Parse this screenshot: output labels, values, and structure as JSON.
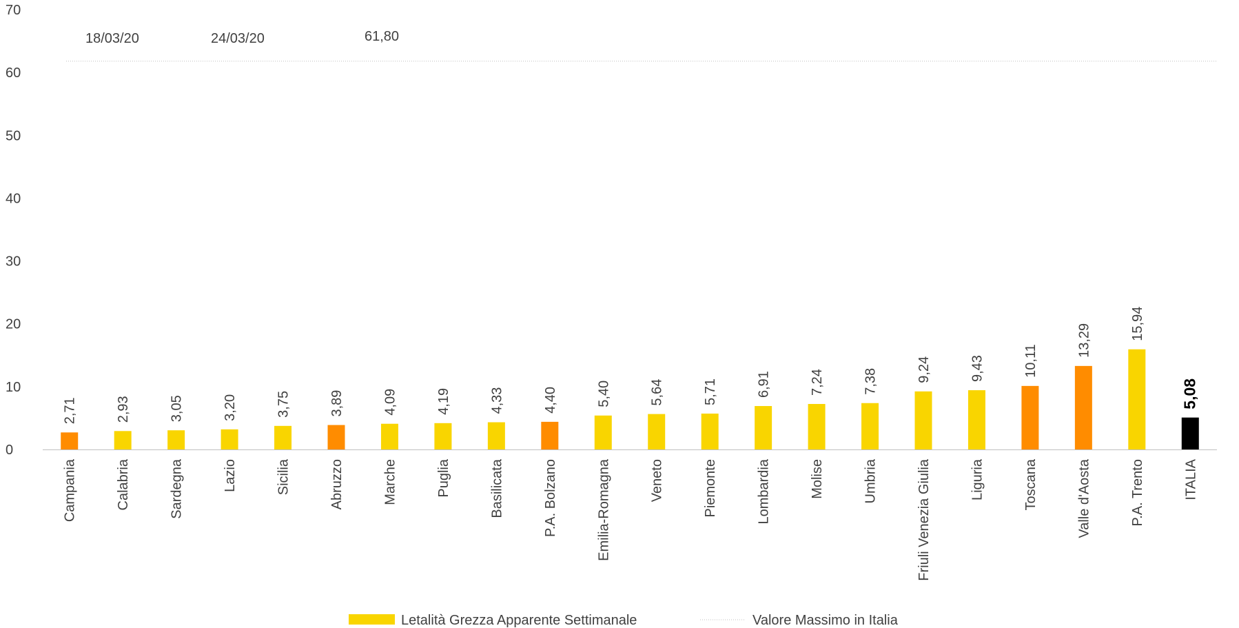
{
  "chart_data": {
    "type": "bar",
    "categories": [
      "Campania",
      "Calabria",
      "Sardegna",
      "Lazio",
      "Sicilia",
      "Abruzzo",
      "Marche",
      "Puglia",
      "Basilicata",
      "P.A. Bolzano",
      "Emilia-Romagna",
      "Veneto",
      "Piemonte",
      "Lombardia",
      "Molise",
      "Umbria",
      "Friuli Venezia Giulia",
      "Liguria",
      "Toscana",
      "Valle d'Aosta",
      "P.A. Trento",
      "ITALIA"
    ],
    "values": [
      2.71,
      2.93,
      3.05,
      3.2,
      3.75,
      3.89,
      4.09,
      4.19,
      4.33,
      4.4,
      5.4,
      5.64,
      5.71,
      6.91,
      7.24,
      7.38,
      9.24,
      9.43,
      10.11,
      13.29,
      15.94,
      5.08
    ],
    "value_labels": [
      "2,71",
      "2,93",
      "3,05",
      "3,20",
      "3,75",
      "3,89",
      "4,09",
      "4,19",
      "4,33",
      "4,40",
      "5,40",
      "5,64",
      "5,71",
      "6,91",
      "7,24",
      "7,38",
      "9,24",
      "9,43",
      "10,11",
      "13,29",
      "15,94",
      "5,08"
    ],
    "bar_colors": [
      "#FF8C00",
      "#F9D500",
      "#F9D500",
      "#F9D500",
      "#F9D500",
      "#FF8C00",
      "#F9D500",
      "#F9D500",
      "#F9D500",
      "#FF8C00",
      "#F9D500",
      "#F9D500",
      "#F9D500",
      "#F9D500",
      "#F9D500",
      "#F9D500",
      "#F9D500",
      "#F9D500",
      "#FF8C00",
      "#FF8C00",
      "#F9D500",
      "#000000"
    ],
    "ylim": [
      0,
      70
    ],
    "yticks": [
      0,
      10,
      20,
      30,
      40,
      50,
      60,
      70
    ],
    "grid": false,
    "reference_line": {
      "value": 61.8,
      "label": "61,80",
      "style": "dotted"
    },
    "date_labels": [
      "18/03/20",
      "24/03/20"
    ],
    "legend": {
      "placement": "bottom",
      "items": [
        {
          "name": "Letalità Grezza Apparente Settimanale",
          "kind": "swatch",
          "color": "#F9D500"
        },
        {
          "name": "Valore Massimo in Italia",
          "kind": "dotted-line",
          "color": "#BFBFBF"
        }
      ]
    },
    "title": "",
    "xlabel": "",
    "ylabel": ""
  }
}
